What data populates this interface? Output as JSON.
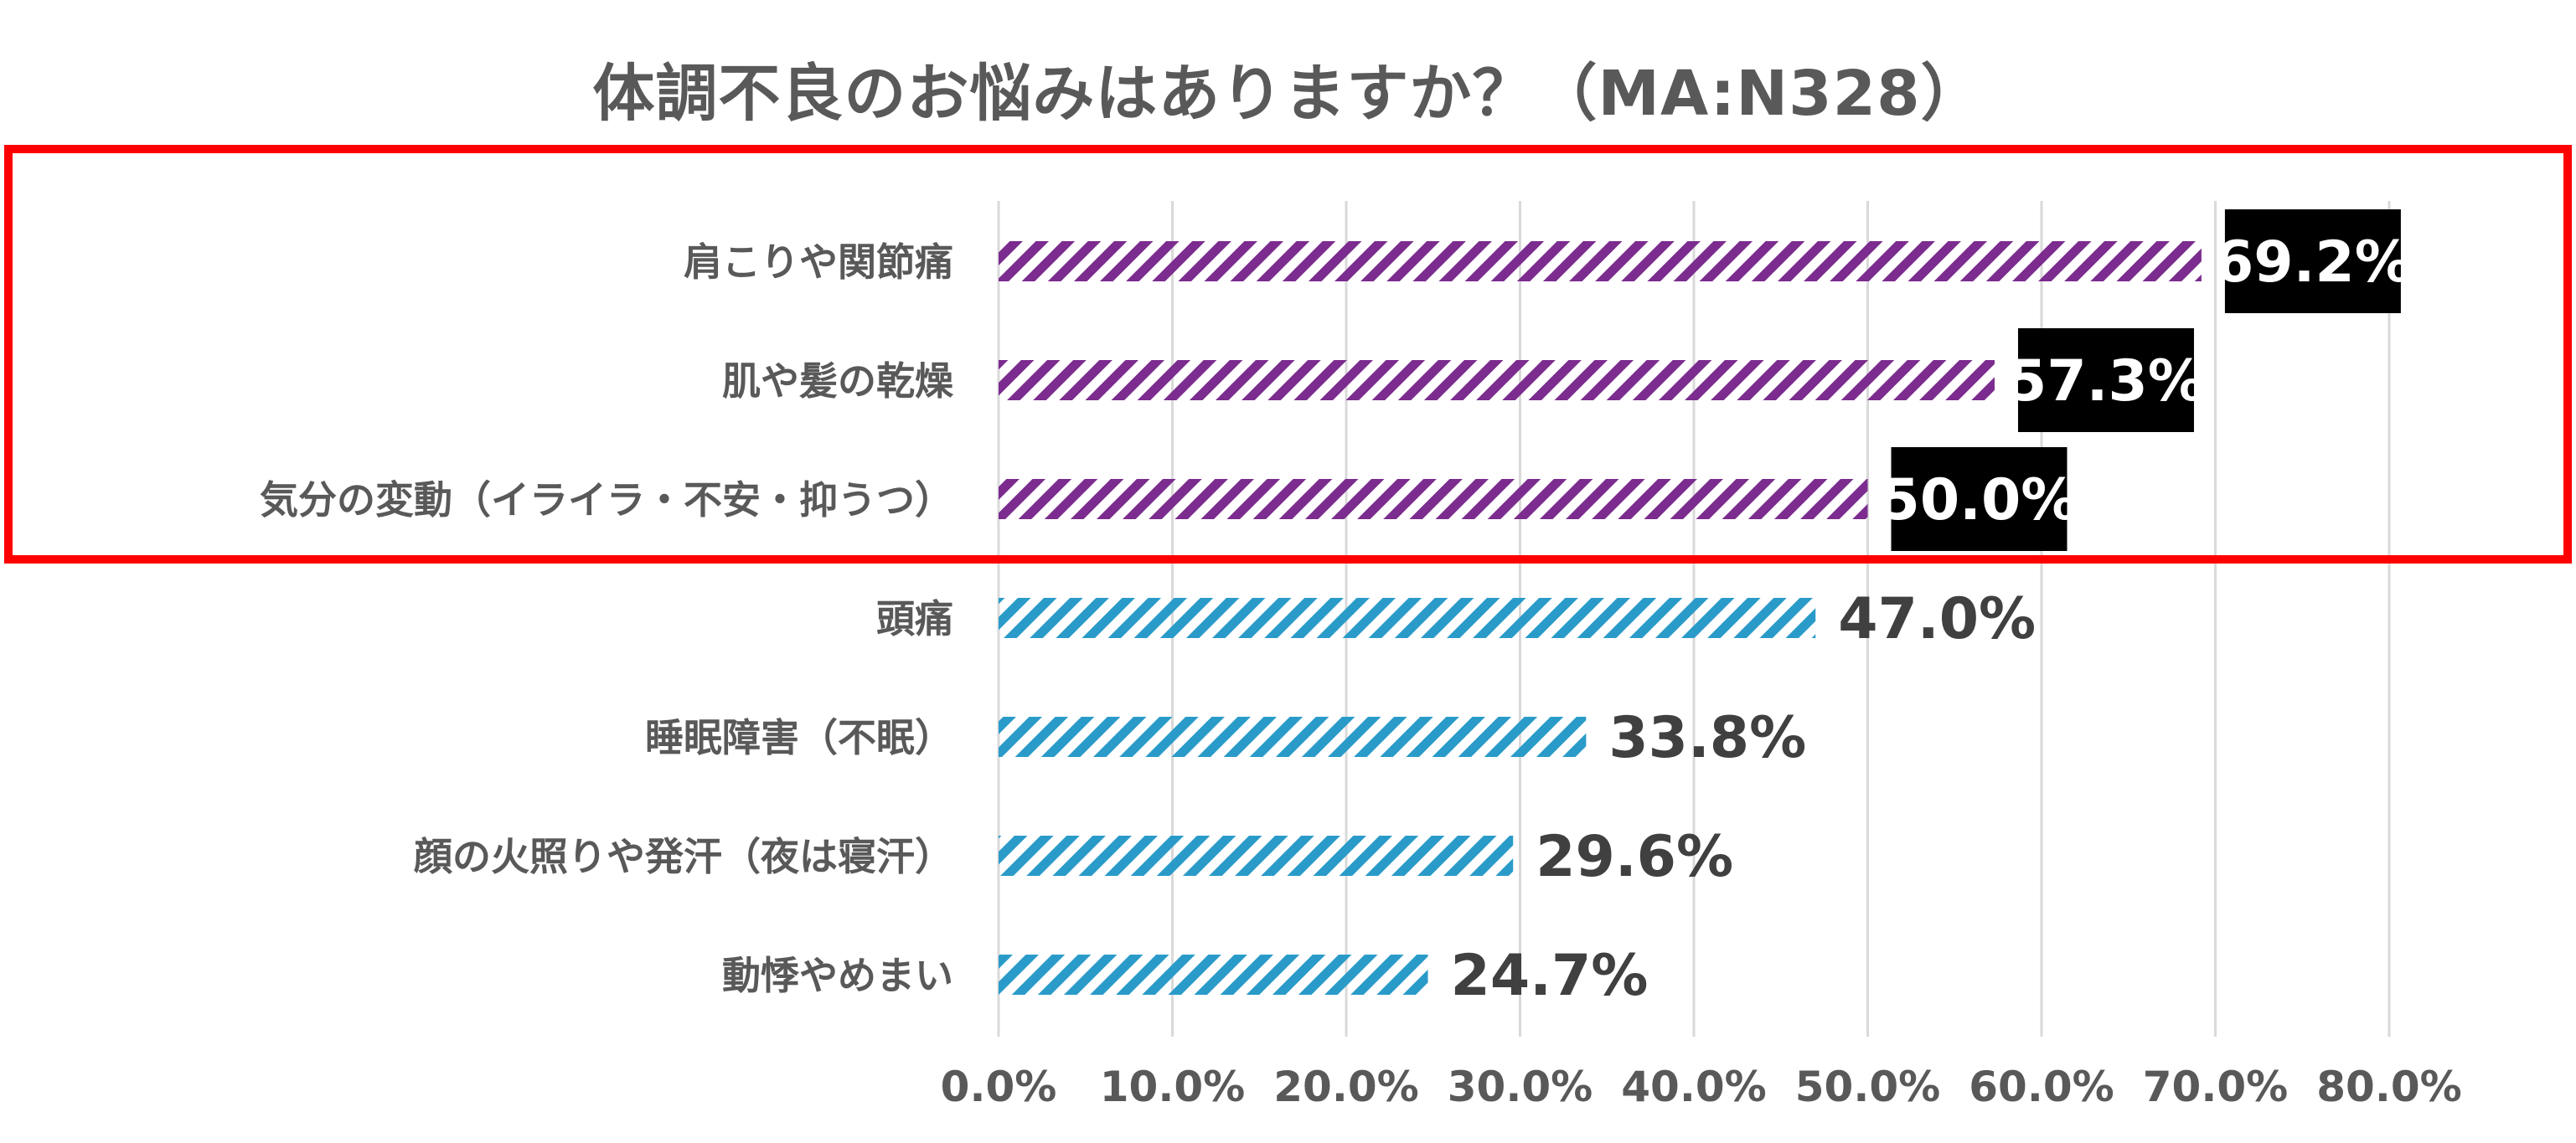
{
  "chart_data": {
    "type": "bar",
    "orientation": "horizontal",
    "title": "体調不良のお悩みはありますか？（MA:N328）",
    "categories": [
      "肩こりや関節痛",
      "肌や髪の乾燥",
      "気分の変動（イライラ・不安・抑うつ）",
      "頭痛",
      "睡眠障害（不眠）",
      "顔の火照りや発汗（夜は寝汗）",
      "動悸やめまい"
    ],
    "values": [
      69.2,
      57.3,
      50.0,
      47.0,
      33.8,
      29.6,
      24.7
    ],
    "data_labels": [
      "69.2%",
      "57.3%",
      "50.0%",
      "47.0%",
      "33.8%",
      "29.6%",
      "24.7%"
    ],
    "highlighted_top_n": 3,
    "xlim": [
      0,
      80
    ],
    "xticks": [
      "0.0%",
      "10.0%",
      "20.0%",
      "30.0%",
      "40.0%",
      "50.0%",
      "60.0%",
      "70.0%",
      "80.0%"
    ],
    "xlabel": "",
    "ylabel": "",
    "grid": "vertical",
    "colors": {
      "highlight_bar": "#7b2c8e",
      "normal_bar": "#2a9bc9",
      "highlight_box": "#ff0000",
      "highlight_label_bg": "#000000",
      "highlight_label_text": "#ffffff",
      "label_text": "#404040",
      "axis_text": "#595959",
      "gridline": "#d9d9d9"
    }
  }
}
